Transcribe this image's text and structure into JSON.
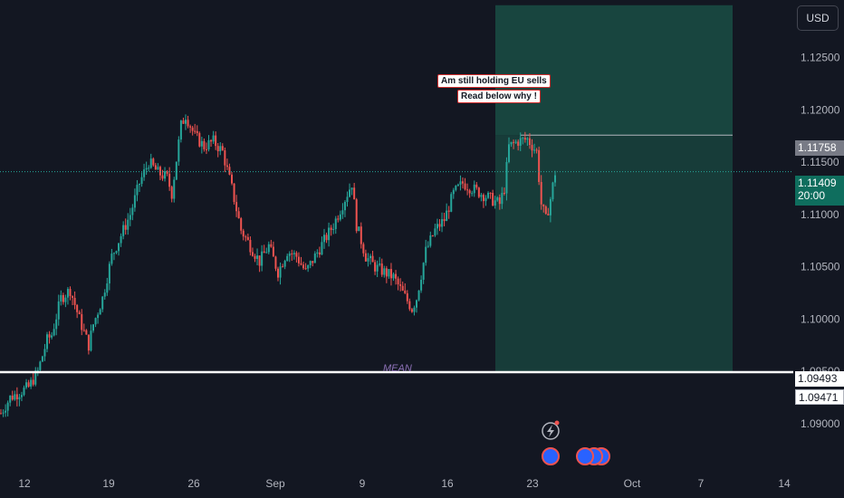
{
  "currency": "USD",
  "annotations": {
    "line1": "Am still holding EU sells",
    "line2": "Read below why !"
  },
  "mean_label": "MEAN",
  "price_tags": {
    "target": "1.11758",
    "current": "1.11409",
    "countdown": "20:00",
    "mean": "1.09493",
    "mean_low": "1.09471"
  },
  "colors": {
    "background": "#131722",
    "up": "#26a69a",
    "down": "#ef5350",
    "zone": "#1a4a42",
    "mean_line": "#ffffff"
  },
  "chart_data": {
    "type": "candlestick",
    "y_ticks": [
      "1.12500",
      "1.12000",
      "1.11500",
      "1.11000",
      "1.10500",
      "1.10000",
      "1.09500",
      "1.09000"
    ],
    "x_ticks": [
      "12",
      "19",
      "26",
      "Sep",
      "9",
      "16",
      "23",
      "Oct",
      "7",
      "14"
    ],
    "ylim": [
      1.0855,
      1.1305
    ],
    "levels": {
      "target": 1.11758,
      "current": 1.11409,
      "mean": 1.09493
    },
    "zone": {
      "top": 1.13,
      "bottom": 1.095
    },
    "close_path": [
      [
        0,
        1.091
      ],
      [
        4,
        1.0925
      ],
      [
        8,
        1.093
      ],
      [
        12,
        1.0935
      ],
      [
        16,
        1.095
      ],
      [
        20,
        1.098
      ],
      [
        22,
        1.0985
      ],
      [
        26,
        1.102
      ],
      [
        30,
        1.1028
      ],
      [
        34,
        1.1
      ],
      [
        38,
        1.0975
      ],
      [
        40,
        1.0995
      ],
      [
        44,
        1.102
      ],
      [
        48,
        1.106
      ],
      [
        52,
        1.108
      ],
      [
        56,
        1.11
      ],
      [
        60,
        1.113
      ],
      [
        64,
        1.115
      ],
      [
        68,
        1.114
      ],
      [
        72,
        1.1135
      ],
      [
        74,
        1.112
      ],
      [
        78,
        1.1185
      ],
      [
        80,
        1.1195
      ],
      [
        84,
        1.1175
      ],
      [
        88,
        1.1165
      ],
      [
        92,
        1.117
      ],
      [
        96,
        1.116
      ],
      [
        100,
        1.1125
      ],
      [
        104,
        1.1085
      ],
      [
        108,
        1.107
      ],
      [
        112,
        1.1055
      ],
      [
        116,
        1.107
      ],
      [
        120,
        1.1045
      ],
      [
        124,
        1.1065
      ],
      [
        128,
        1.106
      ],
      [
        132,
        1.1045
      ],
      [
        136,
        1.106
      ],
      [
        140,
        1.1075
      ],
      [
        144,
        1.109
      ],
      [
        148,
        1.111
      ],
      [
        152,
        1.113
      ],
      [
        154,
        1.109
      ],
      [
        158,
        1.106
      ],
      [
        162,
        1.105
      ],
      [
        166,
        1.1045
      ],
      [
        170,
        1.104
      ],
      [
        174,
        1.1025
      ],
      [
        178,
        1.101
      ],
      [
        180,
        1.102
      ],
      [
        184,
        1.1065
      ],
      [
        188,
        1.1085
      ],
      [
        192,
        1.1095
      ],
      [
        196,
        1.112
      ],
      [
        200,
        1.113
      ],
      [
        204,
        1.1125
      ],
      [
        208,
        1.112
      ],
      [
        212,
        1.1115
      ],
      [
        216,
        1.111
      ],
      [
        218,
        1.1125
      ],
      [
        220,
        1.1165
      ],
      [
        224,
        1.117
      ],
      [
        228,
        1.1172
      ],
      [
        232,
        1.116
      ],
      [
        234,
        1.111
      ],
      [
        236,
        1.1095
      ],
      [
        238,
        1.1115
      ],
      [
        240,
        1.114
      ]
    ]
  }
}
